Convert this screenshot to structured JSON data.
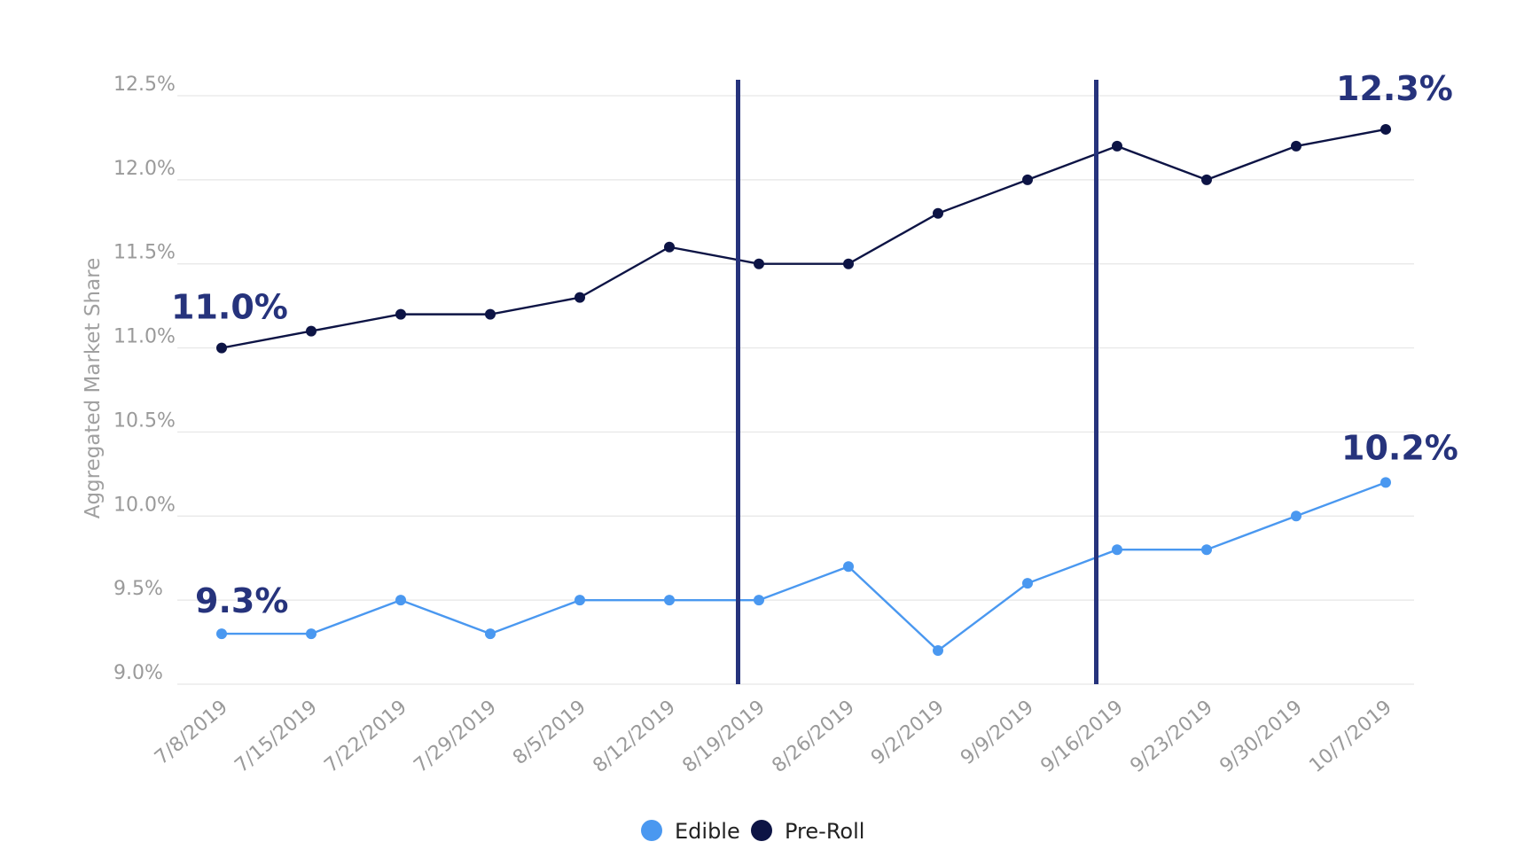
{
  "chart_data": {
    "type": "line",
    "title": "",
    "xlabel": "",
    "ylabel": "Aggregated Market Share",
    "ylim": [
      9.0,
      12.5
    ],
    "yticks": [
      "12.5%",
      "12.0%",
      "11.5%",
      "11.0%",
      "10.5%",
      "10.0%",
      "9.5%",
      "9.0%"
    ],
    "ytick_values": [
      12.5,
      12.0,
      11.5,
      11.0,
      10.5,
      10.0,
      9.5,
      9.0
    ],
    "grid": true,
    "legend_position": "bottom-center",
    "categories": [
      "7/8/2019",
      "7/15/2019",
      "7/22/2019",
      "7/29/2019",
      "8/5/2019",
      "8/12/2019",
      "8/19/2019",
      "8/26/2019",
      "9/2/2019",
      "9/9/2019",
      "9/16/2019",
      "9/23/2019",
      "9/30/2019",
      "10/7/2019"
    ],
    "series": [
      {
        "name": "Edible",
        "color": "#4a98f0",
        "values": [
          9.3,
          9.3,
          9.5,
          9.3,
          9.5,
          9.5,
          9.5,
          9.7,
          9.2,
          9.6,
          9.8,
          9.8,
          10.0,
          10.2
        ]
      },
      {
        "name": "Pre-Roll",
        "color": "#0d1445",
        "values": [
          11.0,
          11.1,
          11.2,
          11.2,
          11.3,
          11.6,
          11.5,
          11.5,
          11.8,
          12.0,
          12.2,
          12.0,
          12.2,
          12.3
        ]
      }
    ],
    "reference_lines_between": [
      [
        "8/12/2019",
        "8/19/2019"
      ],
      [
        "9/9/2019",
        "9/16/2019"
      ]
    ],
    "reference_line_color": "#26337c",
    "annotations": [
      {
        "text": "11.0%",
        "series": "Pre-Roll",
        "category": "7/8/2019"
      },
      {
        "text": "12.3%",
        "series": "Pre-Roll",
        "category": "10/7/2019"
      },
      {
        "text": "9.3%",
        "series": "Edible",
        "category": "7/8/2019"
      },
      {
        "text": "10.2%",
        "series": "Edible",
        "category": "10/7/2019"
      }
    ]
  }
}
